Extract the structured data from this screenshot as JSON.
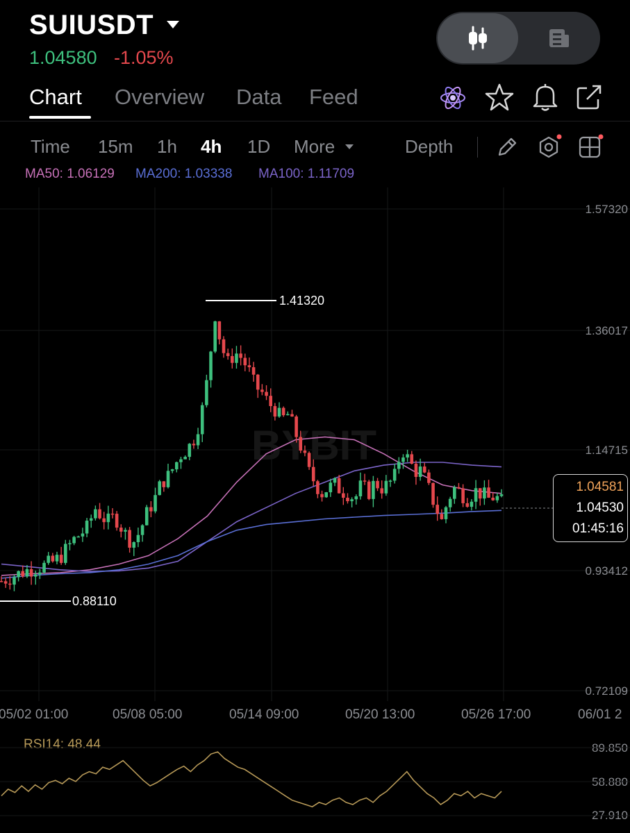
{
  "header": {
    "symbol": "SUIUSDT",
    "price": "1.04580",
    "change": "-1.05%"
  },
  "tabs": [
    {
      "label": "Chart",
      "active": true
    },
    {
      "label": "Overview",
      "active": false
    },
    {
      "label": "Data",
      "active": false
    },
    {
      "label": "Feed",
      "active": false
    }
  ],
  "icons": {
    "atom": "atom-icon",
    "favorite": "star-icon",
    "alert": "bell-icon",
    "share": "share-icon",
    "chart_view": "candlestick-icon",
    "info_view": "document-icon",
    "draw": "pencil-icon",
    "indicator": "hexagon-settings-icon",
    "layout": "grid-icon"
  },
  "timeframes": [
    {
      "label": "Time",
      "active": false
    },
    {
      "label": "15m",
      "active": false
    },
    {
      "label": "1h",
      "active": false
    },
    {
      "label": "4h",
      "active": true
    },
    {
      "label": "1D",
      "active": false
    },
    {
      "label": "More",
      "active": false
    }
  ],
  "depth_label": "Depth",
  "indicators": {
    "ma50": "MA50: 1.06129",
    "ma200": "MA200: 1.03338",
    "ma100": "MA100: 1.11709"
  },
  "colors": {
    "up": "#3ec07e",
    "down": "#e5484d",
    "ma50": "#c771b8",
    "ma200": "#5a6fd6",
    "ma100": "#7b64c9",
    "rsi": "#b89a58",
    "notification_dot": "#ff5a5f"
  },
  "watermark": "BYBIT",
  "chart_data": {
    "type": "candlestick",
    "y_ticks": [
      "1.57320",
      "1.36017",
      "1.14715",
      "0.93412",
      "0.72109"
    ],
    "y_range": [
      0.72109,
      1.5732
    ],
    "x_ticks": [
      "05/02 01:00",
      "05/08 05:00",
      "05/14 09:00",
      "05/20 13:00",
      "05/26 17:00",
      "06/01 2"
    ],
    "high_label": "1.41320",
    "low_label": "0.88110",
    "price_box": {
      "ma_value": "1.04581",
      "last_price": "1.04530",
      "countdown": "01:45:16"
    },
    "close_path": [
      0.915,
      0.92,
      0.925,
      0.93,
      0.935,
      0.938,
      0.94,
      0.945,
      0.95,
      0.96,
      0.975,
      0.99,
      1.0,
      1.01,
      1.045,
      1.03,
      1.02,
      1.03,
      1.01,
      0.99,
      0.985,
      1.01,
      1.04,
      1.06,
      1.09,
      1.1,
      1.12,
      1.14,
      1.15,
      1.17,
      1.21,
      1.28,
      1.39,
      1.33,
      1.3,
      1.32,
      1.31,
      1.29,
      1.26,
      1.25,
      1.23,
      1.22,
      1.2,
      1.21,
      1.18,
      1.15,
      1.11,
      1.09,
      1.07,
      1.08,
      1.085,
      1.075,
      1.07,
      1.06,
      1.085,
      1.07,
      1.09,
      1.08,
      1.085,
      1.1,
      1.15,
      1.13,
      1.11,
      1.11,
      1.08,
      1.05,
      1.02,
      1.06,
      1.08,
      1.07,
      1.06,
      1.075,
      1.07,
      1.06,
      1.065,
      1.055
    ],
    "ma_lines": [
      {
        "name": "MA50",
        "values": [
          0.925,
          0.928,
          0.93,
          0.935,
          0.945,
          0.96,
          0.99,
          1.03,
          1.09,
          1.14,
          1.165,
          1.17,
          1.165,
          1.14,
          1.11,
          1.085,
          1.075,
          1.07
        ]
      },
      {
        "name": "MA100",
        "values": [
          0.945,
          0.94,
          0.935,
          0.932,
          0.933,
          0.938,
          0.95,
          0.985,
          1.02,
          1.045,
          1.07,
          1.09,
          1.11,
          1.12,
          1.125,
          1.125,
          1.12,
          1.117
        ]
      },
      {
        "name": "MA200",
        "values": [
          0.92,
          0.925,
          0.928,
          0.93,
          0.935,
          0.945,
          0.96,
          0.985,
          1.005,
          1.015,
          1.02,
          1.025,
          1.028,
          1.031,
          1.033,
          1.035,
          1.038,
          1.04
        ]
      }
    ],
    "rsi": {
      "label": "RSI14: 48.44",
      "y_ticks": [
        "89.850",
        "58.880",
        "27.910"
      ],
      "y_range": [
        27.91,
        89.85
      ],
      "values": [
        46,
        52,
        49,
        55,
        50,
        56,
        52,
        58,
        60,
        57,
        62,
        59,
        65,
        68,
        66,
        72,
        70,
        74,
        78,
        72,
        66,
        60,
        55,
        58,
        62,
        66,
        70,
        73,
        68,
        74,
        78,
        84,
        86,
        80,
        76,
        72,
        70,
        66,
        62,
        58,
        54,
        50,
        46,
        42,
        40,
        38,
        36,
        40,
        38,
        42,
        44,
        40,
        38,
        42,
        44,
        40,
        46,
        50,
        56,
        62,
        68,
        60,
        54,
        48,
        44,
        38,
        42,
        48,
        46,
        50,
        44,
        48,
        46,
        44,
        50
      ]
    }
  }
}
